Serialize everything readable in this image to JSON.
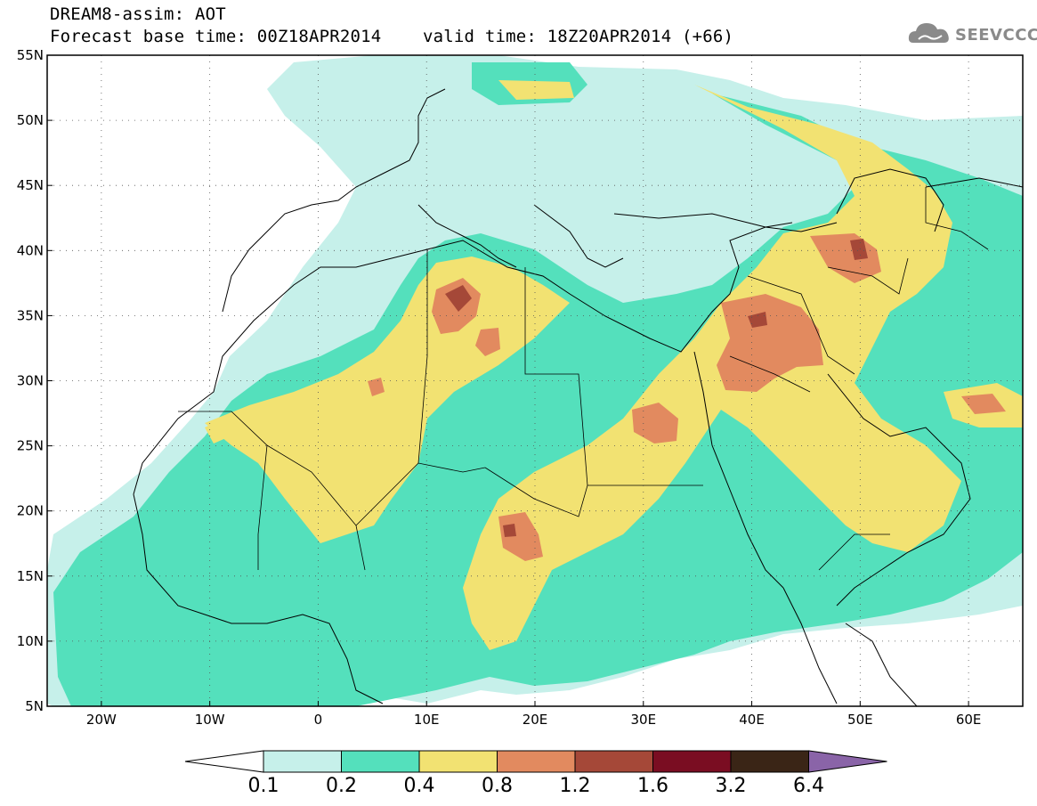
{
  "title": {
    "line1": "DREAM8-assim: AOT",
    "line2": "Forecast base time: 00Z18APR2014    valid time: 18Z20APR2014 (+66)"
  },
  "logo": {
    "text": "SEEVCCC",
    "icon": "cloud-logo-icon"
  },
  "map": {
    "lon_range": [
      -25,
      65
    ],
    "lat_range": [
      5,
      55
    ],
    "lon_ticks": [
      "20W",
      "10W",
      "0",
      "10E",
      "20E",
      "30E",
      "40E",
      "50E",
      "60E"
    ],
    "lat_ticks": [
      "55N",
      "50N",
      "45N",
      "40N",
      "35N",
      "30N",
      "25N",
      "20N",
      "15N",
      "10N",
      "5N"
    ],
    "grid": "dotted"
  },
  "colorbar": {
    "labels": [
      "0.1",
      "0.2",
      "0.4",
      "0.8",
      "1.2",
      "1.6",
      "3.2",
      "6.4"
    ],
    "colors": [
      "#c6f0ea",
      "#54e0bc",
      "#f2e272",
      "#e28a5f",
      "#a54838",
      "#7a0d22",
      "#3a2516",
      "#8a64a8"
    ]
  }
}
